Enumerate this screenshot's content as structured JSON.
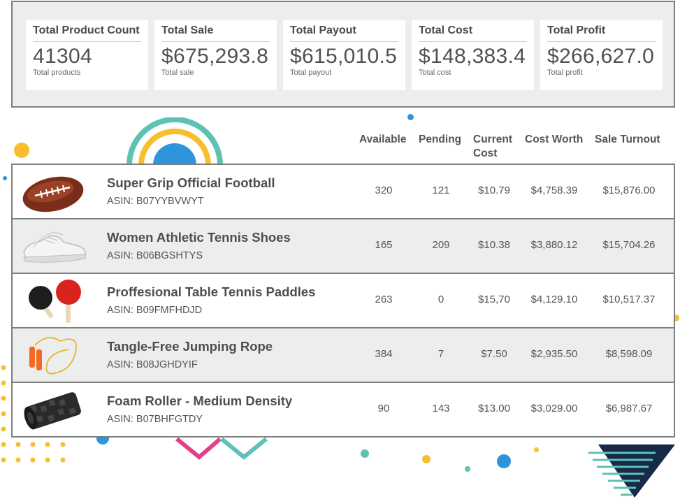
{
  "summary": [
    {
      "title": "Total Product Count",
      "value": "41304",
      "sub": "Total products"
    },
    {
      "title": "Total Sale",
      "value": "$675,293.8",
      "sub": "Total sale"
    },
    {
      "title": "Total Payout",
      "value": "$615,010.5",
      "sub": "Total payout"
    },
    {
      "title": "Total Cost",
      "value": "$148,383.4",
      "sub": "Total cost"
    },
    {
      "title": "Total Profit",
      "value": "$266,627.0",
      "sub": "Total profit"
    }
  ],
  "columns": {
    "available": "Available",
    "pending": "Pending",
    "current_cost_1": "Current",
    "current_cost_2": "Cost",
    "cost_worth": "Cost Worth",
    "sale_turnout": "Sale Turnout"
  },
  "products": [
    {
      "name": "Super Grip Official Football",
      "asin": "ASIN: B07YYBVWYT",
      "available": "320",
      "pending": "121",
      "current_cost": "$10.79",
      "cost_worth": "$4,758.39",
      "sale_turnout": "$15,876.00",
      "image": "football-icon"
    },
    {
      "name": "Women Athletic Tennis Shoes",
      "asin": "ASIN: B06BGSHTYS",
      "available": "165",
      "pending": "209",
      "current_cost": "$10.38",
      "cost_worth": "$3,880.12",
      "sale_turnout": "$15,704.26",
      "image": "sneaker-icon"
    },
    {
      "name": "Proffesional Table Tennis Paddles",
      "asin": "ASIN: B09FMFHDJD",
      "available": "263",
      "pending": "0",
      "current_cost": "$15,70",
      "cost_worth": "$4,129.10",
      "sale_turnout": "$10,517.37",
      "image": "paddles-icon"
    },
    {
      "name": "Tangle-Free Jumping Rope",
      "asin": "ASIN: B08JGHDYIF",
      "available": "384",
      "pending": "7",
      "current_cost": "$7.50",
      "cost_worth": "$2,935.50",
      "sale_turnout": "$8,598.09",
      "image": "jump-rope-icon"
    },
    {
      "name": "Foam Roller - Medium Density",
      "asin": "ASIN: B07BHFGTDY",
      "available": "90",
      "pending": "143",
      "current_cost": "$13.00",
      "cost_worth": "$3,029.00",
      "sale_turnout": "$6,987.67",
      "image": "foam-roller-icon"
    }
  ],
  "colors": {
    "panel_bg": "#eceeed",
    "border": "#7e7e7e",
    "teal": "#5fc1b4",
    "yellow": "#f7bf2d",
    "blue": "#2e95dc",
    "pink": "#e0418a",
    "navy": "#162a4a"
  }
}
